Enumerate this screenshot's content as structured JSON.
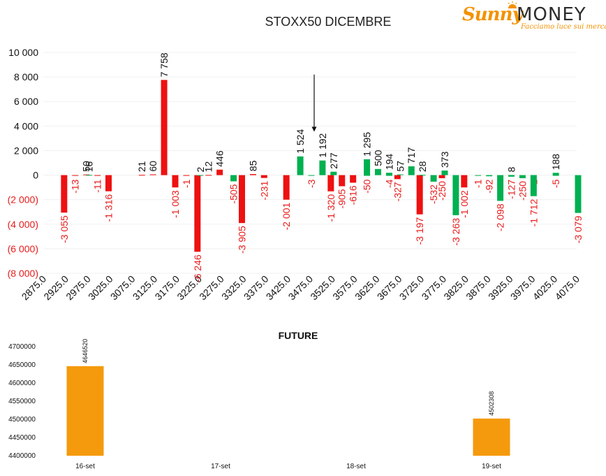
{
  "logo": {
    "brand_a": "Sunny",
    "brand_b": "MONEY",
    "tagline": "Facciamo luce sui mercati"
  },
  "colors": {
    "positive": "#00b050",
    "negative": "#ee1111",
    "future_bar": "#f59a0c",
    "text": "#000000",
    "neg_text": "#e81b1b"
  },
  "chart_data": [
    {
      "type": "bar",
      "title": "STOXX50 DICEMBRE",
      "ylim": [
        -8000,
        10000
      ],
      "yticks": [
        10000,
        8000,
        6000,
        4000,
        2000,
        0,
        -2000,
        -4000,
        -6000,
        -8000
      ],
      "ytick_labels": [
        "10 000",
        "8 000",
        "6 000",
        "4 000",
        "2 000",
        "0",
        "(2 000)",
        "(4 000)",
        "(6 000)",
        "(8 000)"
      ],
      "x_tick_labels": [
        "2875.0",
        "2925.0",
        "2975.0",
        "3025.0",
        "3075.0",
        "3125.0",
        "3175.0",
        "3225.0",
        "3275.0",
        "3325.0",
        "3375.0",
        "3425.0",
        "3475.0",
        "3525.0",
        "3575.0",
        "3625.0",
        "3675.0",
        "3725.0",
        "3775.0",
        "3825.0",
        "3875.0",
        "3925.0",
        "3975.0",
        "4025.0",
        "4075.0"
      ],
      "series": [
        {
          "color": "red",
          "points": [
            {
              "x": 2925,
              "y": -3055,
              "label": "-3 055"
            },
            {
              "x": 2950,
              "y": -13,
              "label": "-13"
            },
            {
              "x": 2975,
              "y": 50,
              "label": "50"
            },
            {
              "x": 3000,
              "y": -11,
              "label": "-11"
            },
            {
              "x": 3025,
              "y": -1316,
              "label": "-1 316"
            },
            {
              "x": 3100,
              "y": 21,
              "label": "21"
            },
            {
              "x": 3125,
              "y": 60,
              "label": "60"
            },
            {
              "x": 3150,
              "y": 7758,
              "label": "7 758"
            },
            {
              "x": 3175,
              "y": -1003,
              "label": "-1 003"
            },
            {
              "x": 3200,
              "y": -1,
              "label": "-1"
            },
            {
              "x": 3225,
              "y": -6246,
              "label": "-6 246"
            },
            {
              "x": 3250,
              "y": 12,
              "label": "12"
            },
            {
              "x": 3275,
              "y": 446,
              "label": "446"
            },
            {
              "x": 3325,
              "y": -3905,
              "label": "-3 905"
            },
            {
              "x": 3350,
              "y": 85,
              "label": "85"
            },
            {
              "x": 3375,
              "y": -231,
              "label": "-231"
            },
            {
              "x": 3425,
              "y": -2001,
              "label": "-2 001"
            },
            {
              "x": 3525,
              "y": -1320,
              "label": "-1 320"
            },
            {
              "x": 3550,
              "y": -905,
              "label": "-905"
            },
            {
              "x": 3575,
              "y": -616,
              "label": "-616"
            },
            {
              "x": 3675,
              "y": -327,
              "label": "-327"
            },
            {
              "x": 3725,
              "y": -3197,
              "label": "-3 197"
            },
            {
              "x": 3775,
              "y": -250,
              "label": "-250"
            },
            {
              "x": 3825,
              "y": -1002,
              "label": "-1 002"
            }
          ]
        },
        {
          "color": "green",
          "points": [
            {
              "x": 2975,
              "y": 16,
              "label": "16"
            },
            {
              "x": 3225,
              "y": 2,
              "label": "2"
            },
            {
              "x": 3300,
              "y": -505,
              "label": "-505"
            },
            {
              "x": 3450,
              "y": 1524,
              "label": "1 524"
            },
            {
              "x": 3475,
              "y": -3,
              "label": "-3"
            },
            {
              "x": 3500,
              "y": 1192,
              "label": "1 192"
            },
            {
              "x": 3525,
              "y": 277,
              "label": "277"
            },
            {
              "x": 3600,
              "y": 1295,
              "label": "1 295"
            },
            {
              "x": 3600,
              "y": -50,
              "label": "-50"
            },
            {
              "x": 3625,
              "y": 500,
              "label": "500"
            },
            {
              "x": 3650,
              "y": 194,
              "label": "194"
            },
            {
              "x": 3650,
              "y": -4,
              "label": "-4"
            },
            {
              "x": 3675,
              "y": 57,
              "label": "57"
            },
            {
              "x": 3700,
              "y": 717,
              "label": "717"
            },
            {
              "x": 3725,
              "y": 28,
              "label": "28"
            },
            {
              "x": 3750,
              "y": -532,
              "label": "-532"
            },
            {
              "x": 3775,
              "y": 373,
              "label": "373"
            },
            {
              "x": 3800,
              "y": -3263,
              "label": "-3 263"
            },
            {
              "x": 3850,
              "y": -1,
              "label": "-1"
            },
            {
              "x": 3875,
              "y": -92,
              "label": "-92"
            },
            {
              "x": 3900,
              "y": -2098,
              "label": "-2 098"
            },
            {
              "x": 3925,
              "y": 8,
              "label": "8"
            },
            {
              "x": 3925,
              "y": -127,
              "label": "-127"
            },
            {
              "x": 3950,
              "y": -250,
              "label": "-250"
            },
            {
              "x": 3975,
              "y": -1,
              "label": "-1"
            },
            {
              "x": 3975,
              "y": -1712,
              "label": "-1 712"
            },
            {
              "x": 4025,
              "y": 188,
              "label": "188"
            },
            {
              "x": 4025,
              "y": -5,
              "label": "-5"
            },
            {
              "x": 4075,
              "y": -3079,
              "label": "-3 079"
            }
          ]
        }
      ],
      "annotation": {
        "type": "arrow",
        "x": 3475,
        "y_from": 8200,
        "y_to": 3600
      }
    },
    {
      "type": "bar",
      "title": "FUTURE",
      "categories": [
        "16-set",
        "17-set",
        "18-set",
        "19-set"
      ],
      "values": [
        4646520,
        null,
        null,
        4502308
      ],
      "value_labels": [
        "4646520",
        "",
        "",
        "4502308"
      ],
      "ylim": [
        4400000,
        4700000
      ],
      "yticks": [
        4700000,
        4650000,
        4600000,
        4550000,
        4500000,
        4450000,
        4400000
      ],
      "ytick_labels": [
        "4700000",
        "4650000",
        "4600000",
        "4550000",
        "4500000",
        "4450000",
        "4400000"
      ]
    }
  ]
}
